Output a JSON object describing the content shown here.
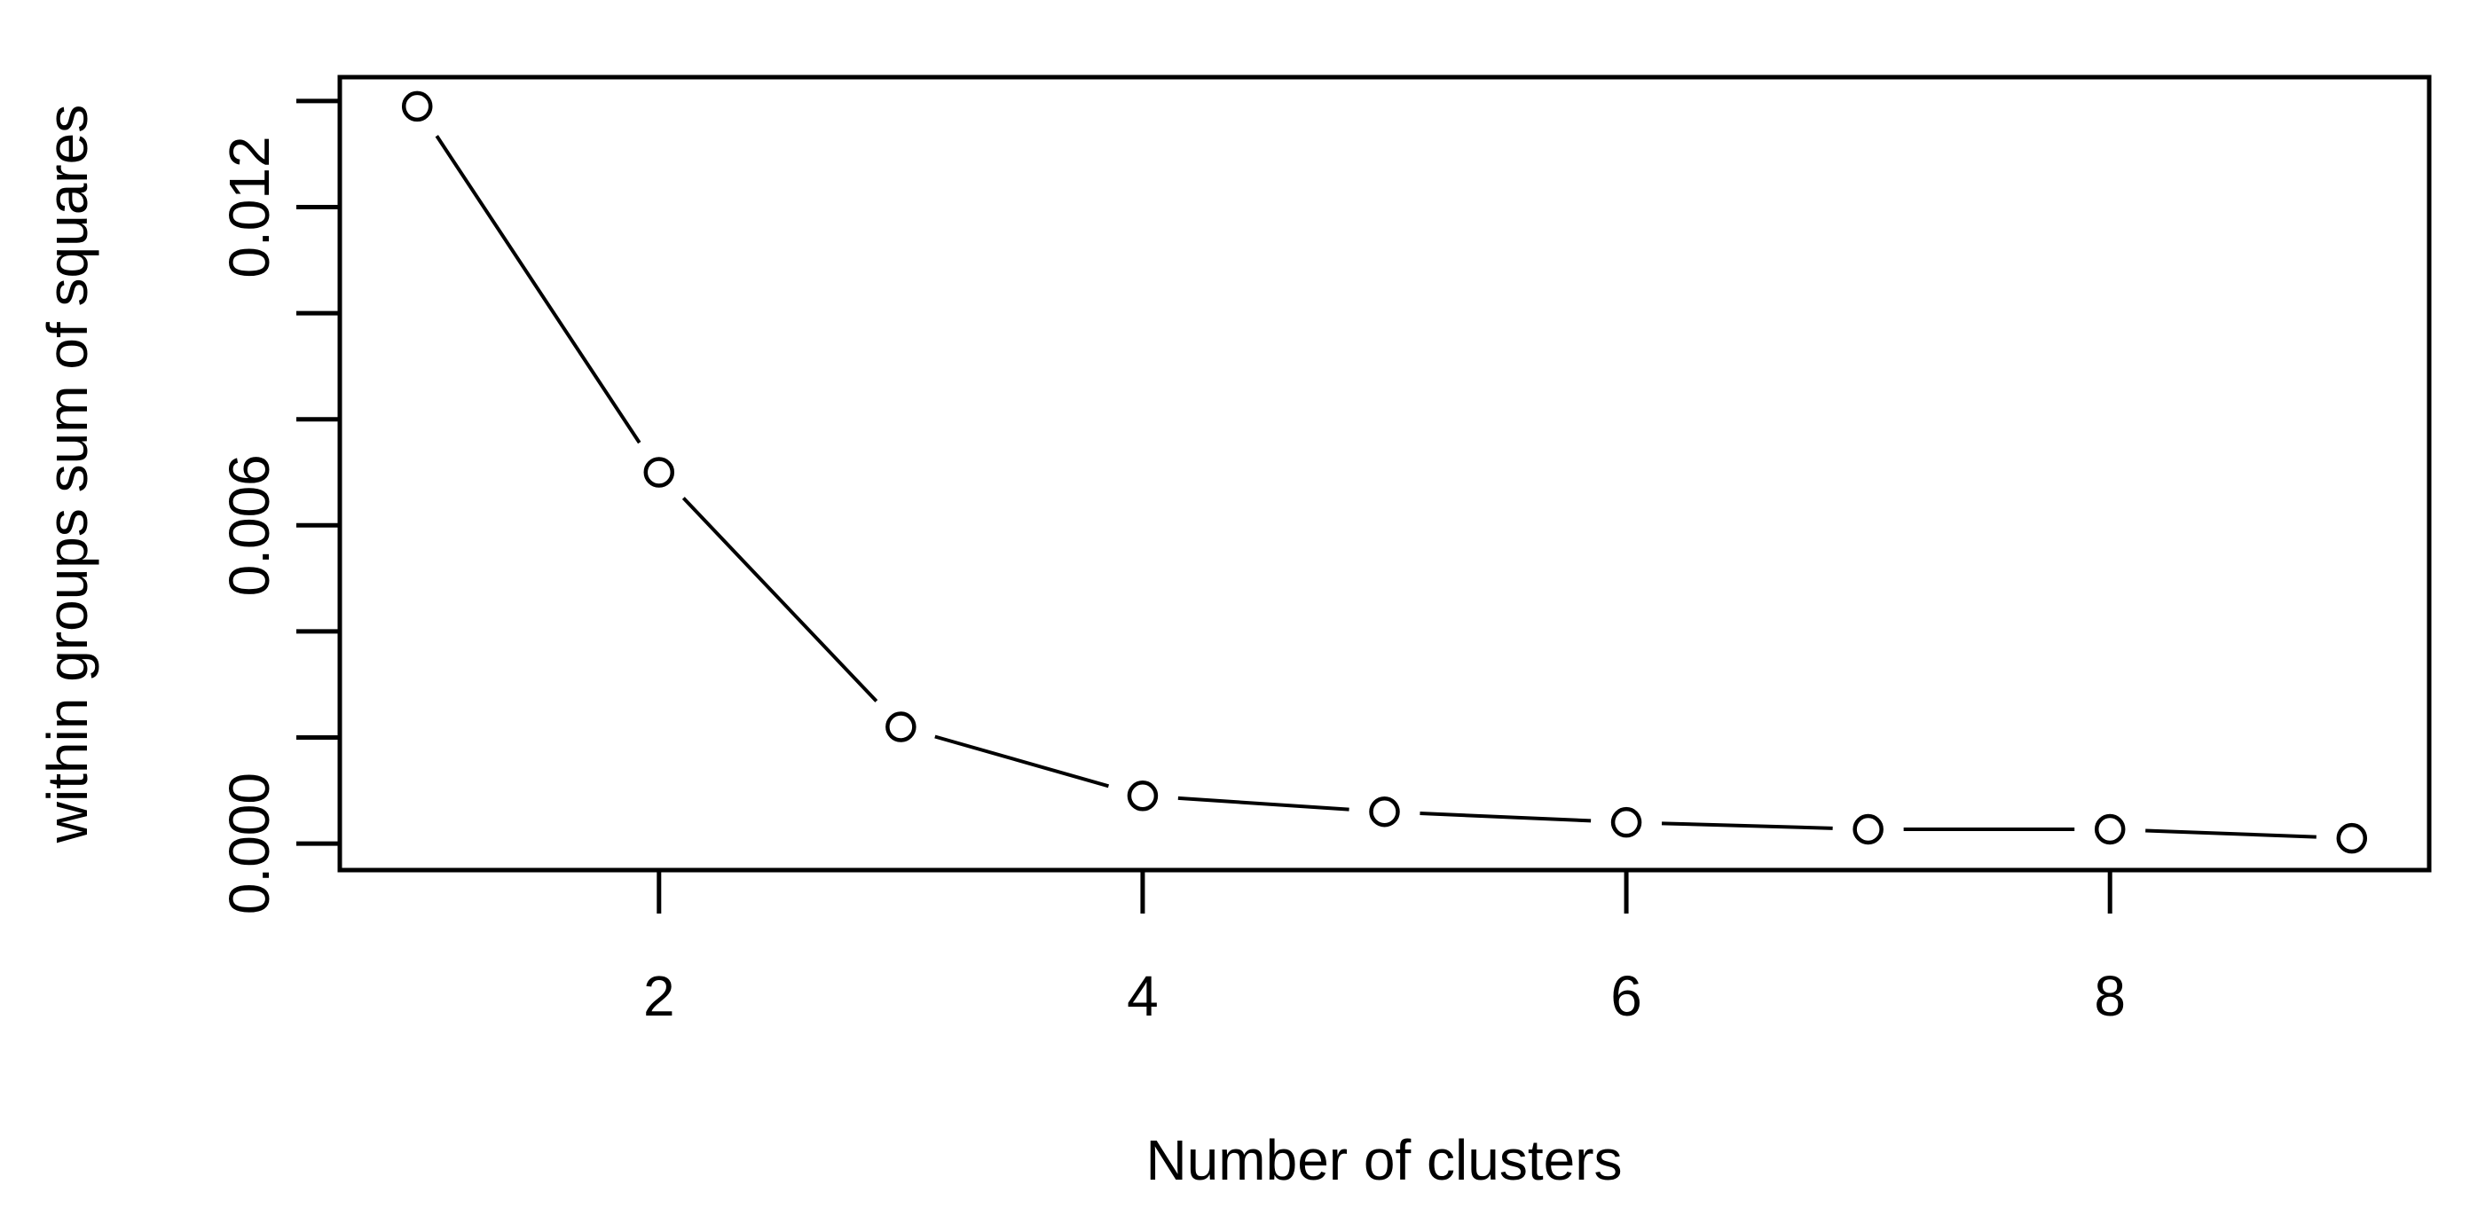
{
  "page": {
    "background": "#ffffff"
  },
  "chart_data": {
    "type": "line",
    "title": "",
    "xlabel": "Number of clusters",
    "ylabel": "within groups sum of squares",
    "series": [
      {
        "name": "within-groups-sum-of-squares",
        "x": [
          1,
          2,
          3,
          4,
          5,
          6,
          7,
          8,
          9
        ],
        "values": [
          0.0139,
          0.007,
          0.0022,
          0.0009,
          0.0006,
          0.0004,
          0.00027,
          0.00027,
          0.0001
        ]
      }
    ],
    "xlim": [
      0.68,
      9.32
    ],
    "ylim": [
      -0.0005,
      0.01445
    ],
    "x_ticks": [
      2,
      4,
      6,
      8
    ],
    "x_tick_labels": [
      "2",
      "4",
      "6",
      "8"
    ],
    "y_ticks": [
      0,
      0.002,
      0.004,
      0.006,
      0.008,
      0.01,
      0.012,
      0.014
    ],
    "y_tick_labels": [
      "0.000",
      "",
      "",
      "0.006",
      "",
      "",
      "0.012",
      ""
    ],
    "grid": false,
    "legend": "none",
    "marker": "open-circle",
    "line_style": "segments-with-gaps-at-points",
    "colors": {
      "axis": "#000000",
      "text": "#000000",
      "line": "#000000",
      "marker_stroke": "#000000",
      "background": "#ffffff"
    }
  }
}
